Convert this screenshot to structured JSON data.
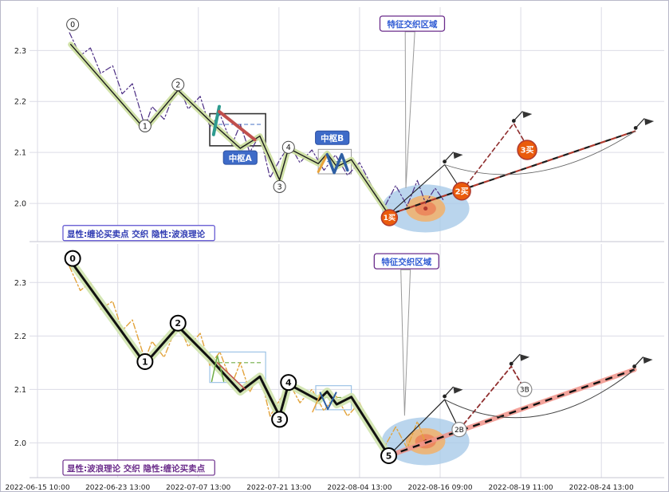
{
  "figure": {
    "background": "#ffffff",
    "border_color": "#b9b9c9",
    "grid_color": "#dcdce6",
    "axis_line_color": "#c5c5d2",
    "tick_text_color": "#1a1a1a"
  },
  "x_axis": {
    "ticks": [
      {
        "label": "2022-06-15 10:00",
        "f": 0.0126
      },
      {
        "label": "2022-06-23 13:00",
        "f": 0.139
      },
      {
        "label": "2022-07-07 13:00",
        "f": 0.266
      },
      {
        "label": "2022-07-21 13:00",
        "f": 0.393
      },
      {
        "label": "2022-08-04 13:00",
        "f": 0.52
      },
      {
        "label": "2022-08-16 09:00",
        "f": 0.647
      },
      {
        "label": "2022-08-19 11:00",
        "f": 0.774
      },
      {
        "label": "2022-08-24 13:00",
        "f": 0.901
      }
    ]
  },
  "chart_data": [
    {
      "type": "line",
      "name": "panel-top-chan-explicit",
      "title": "",
      "xlabel": "",
      "ylabel": "",
      "ylim": [
        1.925,
        2.385
      ],
      "yticks": [
        2.3,
        2.2,
        2.1,
        2.0
      ],
      "legend": {
        "text": "显性:缠论买卖点 交织 隐性:波浪理论",
        "text_color": "#2F3BB3",
        "border_color": "#5A4FCF",
        "f": 0.059,
        "p": 1.941
      },
      "feature_zone": {
        "label": "特征交织区域",
        "label_color": "#2F5BD4",
        "box_border": "#6B2D8B",
        "label_f": 0.603,
        "label_p": 2.352,
        "wedge": [
          [
            0.592,
            2.337
          ],
          [
            0.607,
            2.337
          ],
          [
            0.593,
            2.03
          ]
        ],
        "center_f": 0.624,
        "center_p": 1.99,
        "rx_f": 0.069,
        "ry_p": 0.047,
        "colors": {
          "outer": "#a9cbe8",
          "mid": "#f2b069",
          "inner": "#ec8a5e",
          "dot": "#b03a2e"
        }
      },
      "series": [
        {
          "name": "elliott-hidden-line",
          "color": "#4B2D83",
          "width": 1.2,
          "dash": "7 3 2 3",
          "points": [
            [
              0.063,
              2.335
            ],
            [
              0.08,
              2.29
            ],
            [
              0.096,
              2.305
            ],
            [
              0.112,
              2.255
            ],
            [
              0.131,
              2.27
            ],
            [
              0.146,
              2.215
            ],
            [
              0.162,
              2.235
            ],
            [
              0.182,
              2.15
            ],
            [
              0.193,
              2.19
            ],
            [
              0.212,
              2.165
            ],
            [
              0.234,
              2.235
            ],
            [
              0.25,
              2.185
            ],
            [
              0.269,
              2.21
            ],
            [
              0.284,
              2.15
            ],
            [
              0.3,
              2.175
            ],
            [
              0.319,
              2.115
            ],
            [
              0.332,
              2.155
            ],
            [
              0.347,
              2.1
            ],
            [
              0.363,
              2.135
            ],
            [
              0.379,
              2.05
            ],
            [
              0.394,
              2.085
            ],
            [
              0.41,
              2.115
            ],
            [
              0.426,
              2.08
            ],
            [
              0.445,
              2.105
            ],
            [
              0.464,
              2.065
            ],
            [
              0.482,
              2.095
            ],
            [
              0.501,
              2.055
            ],
            [
              0.52,
              2.08
            ],
            [
              0.539,
              2.035
            ],
            [
              0.558,
              1.99
            ],
            [
              0.577,
              2.035
            ],
            [
              0.595,
              1.995
            ],
            [
              0.611,
              2.045
            ],
            [
              0.624,
              2.0
            ],
            [
              0.639,
              2.03
            ],
            [
              0.653,
              2.005
            ]
          ]
        },
        {
          "name": "chan-main-line",
          "color": "#1b1b1b",
          "width": 1.4,
          "glow_color": "#ccdf9e",
          "glow_width": 7,
          "points": [
            [
              0.065,
              2.312
            ],
            [
              0.182,
              2.145
            ],
            [
              0.234,
              2.222
            ],
            [
              0.284,
              2.162
            ],
            [
              0.332,
              2.108
            ],
            [
              0.363,
              2.132
            ],
            [
              0.394,
              2.046
            ],
            [
              0.408,
              2.108
            ],
            [
              0.455,
              2.078
            ],
            [
              0.469,
              2.098
            ],
            [
              0.484,
              2.072
            ],
            [
              0.507,
              2.086
            ],
            [
              0.566,
              1.978
            ]
          ]
        }
      ],
      "post_low": {
        "thin": {
          "color": "#222222",
          "width": 1.1,
          "points": [
            [
              0.566,
              1.978
            ],
            [
              0.654,
              2.076
            ],
            [
              0.681,
              2.024
            ]
          ]
        },
        "dashed": {
          "color": "#8f2d2d",
          "width": 1.6,
          "dash": "5 4",
          "points": [
            [
              0.681,
              2.024
            ],
            [
              0.763,
              2.157
            ],
            [
              0.784,
              2.112
            ]
          ]
        },
        "trend": {
          "style": "duotone",
          "from": [
            0.566,
            1.978
          ],
          "to": [
            0.955,
            2.142
          ],
          "color_a": "#b03a2e",
          "color_b": "#1b1b1b",
          "width": 2.2
        },
        "arc": {
          "from": [
            0.654,
            2.076
          ],
          "ctrl": [
            0.8,
            2.016
          ],
          "to": [
            0.955,
            2.142
          ],
          "color": "#666666",
          "width": 0.9
        }
      },
      "pivot_boxes": [
        {
          "f1": 0.284,
          "p1": 2.176,
          "f2": 0.372,
          "p2": 2.113,
          "border": "#333333",
          "width": 1.6,
          "inner_dash": {
            "p": 2.155,
            "color": "#4472C4"
          }
        },
        {
          "f1": 0.455,
          "p1": 2.106,
          "f2": 0.507,
          "p2": 2.058,
          "border": "#999999",
          "width": 1,
          "inner_dash": {
            "p": 2.082,
            "color": "#4472C4"
          }
        }
      ],
      "pivot_labels": [
        {
          "text": "中枢A",
          "f": 0.332,
          "p": 2.089,
          "bg": "#3E6BC8",
          "text_color": "#ffffff"
        },
        {
          "text": "中枢B",
          "f": 0.477,
          "p": 2.128,
          "bg": "#3E6BC8",
          "text_color": "#ffffff"
        }
      ],
      "strokes": [
        {
          "points": [
            [
              0.29,
              2.135
            ],
            [
              0.299,
              2.19
            ]
          ],
          "color": "#2E9B8F",
          "width": 4
        },
        {
          "points": [
            [
              0.299,
              2.18
            ],
            [
              0.355,
              2.125
            ]
          ],
          "color": "#C0504D",
          "width": 4
        },
        {
          "points": [
            [
              0.455,
              2.062
            ],
            [
              0.469,
              2.096
            ]
          ],
          "color": "#E8A33B",
          "width": 3
        },
        {
          "points": [
            [
              0.469,
              2.096
            ],
            [
              0.48,
              2.06
            ],
            [
              0.492,
              2.096
            ],
            [
              0.501,
              2.065
            ]
          ],
          "color": "#2E5FA3",
          "width": 3.5
        }
      ],
      "flags": [
        [
          0.654,
          2.082
        ],
        [
          0.763,
          2.162
        ],
        [
          0.955,
          2.148
        ]
      ],
      "markers": [
        {
          "text": "0",
          "f": 0.068,
          "p": 2.351,
          "style": "num"
        },
        {
          "text": "1",
          "f": 0.182,
          "p": 2.152,
          "style": "num"
        },
        {
          "text": "2",
          "f": 0.234,
          "p": 2.233,
          "style": "num"
        },
        {
          "text": "3",
          "f": 0.394,
          "p": 2.033,
          "style": "num"
        },
        {
          "text": "4",
          "f": 0.408,
          "p": 2.11,
          "style": "num"
        },
        {
          "text": "1买",
          "f": 0.567,
          "p": 1.972,
          "style": "buy",
          "r": 10
        },
        {
          "text": "2买",
          "f": 0.681,
          "p": 2.024,
          "style": "buy",
          "r": 11
        },
        {
          "text": "3买",
          "f": 0.784,
          "p": 2.105,
          "style": "buy",
          "r": 12
        }
      ]
    },
    {
      "type": "line",
      "name": "panel-bottom-wave-explicit",
      "title": "",
      "xlabel": "",
      "ylabel": "",
      "ylim": [
        1.935,
        2.372
      ],
      "yticks": [
        2.3,
        2.2,
        2.1,
        2.0
      ],
      "legend": {
        "text": "显性:波浪理论 交织 隐性:缠论买卖点",
        "text_color": "#6B2D8B",
        "border_color": "#6B2D8B",
        "f": 0.059,
        "p": 1.953
      },
      "feature_zone": {
        "label": "特征交织区域",
        "label_color": "#2F5BD4",
        "box_border": "#6B2D8B",
        "label_f": 0.594,
        "label_p": 2.339,
        "wedge": [
          [
            0.585,
            2.324
          ],
          [
            0.6,
            2.324
          ],
          [
            0.591,
            2.051
          ]
        ],
        "center_f": 0.624,
        "center_p": 2.003,
        "rx_f": 0.069,
        "ry_p": 0.0448,
        "colors": {
          "outer": "#a9cbe8",
          "mid": "#f2b069",
          "inner": "#ec8a5e",
          "dot": "#b03a2e"
        }
      },
      "series": [
        {
          "name": "chan-hidden-line",
          "color": "#E2A33B",
          "width": 1.4,
          "dash": "7 3 2 3",
          "points": [
            [
              0.063,
              2.33
            ],
            [
              0.08,
              2.285
            ],
            [
              0.096,
              2.3
            ],
            [
              0.112,
              2.25
            ],
            [
              0.131,
              2.265
            ],
            [
              0.146,
              2.21
            ],
            [
              0.162,
              2.23
            ],
            [
              0.182,
              2.155
            ],
            [
              0.193,
              2.19
            ],
            [
              0.212,
              2.16
            ],
            [
              0.234,
              2.225
            ],
            [
              0.25,
              2.18
            ],
            [
              0.269,
              2.205
            ],
            [
              0.284,
              2.145
            ],
            [
              0.3,
              2.17
            ],
            [
              0.319,
              2.11
            ],
            [
              0.332,
              2.15
            ],
            [
              0.347,
              2.095
            ],
            [
              0.363,
              2.13
            ],
            [
              0.379,
              2.05
            ],
            [
              0.394,
              2.08
            ],
            [
              0.41,
              2.11
            ],
            [
              0.426,
              2.075
            ],
            [
              0.445,
              2.1
            ],
            [
              0.464,
              2.06
            ],
            [
              0.482,
              2.09
            ],
            [
              0.501,
              2.05
            ],
            [
              0.52,
              2.075
            ],
            [
              0.539,
              2.03
            ],
            [
              0.558,
              1.99
            ],
            [
              0.577,
              2.03
            ],
            [
              0.595,
              1.99
            ],
            [
              0.611,
              2.04
            ],
            [
              0.624,
              2.0
            ]
          ]
        },
        {
          "name": "wave-main-line",
          "color": "#111111",
          "width": 3,
          "glow_color": "#cfe3ad",
          "glow_width": 10,
          "points": [
            [
              0.065,
              2.34
            ],
            [
              0.182,
              2.148
            ],
            [
              0.234,
              2.218
            ],
            [
              0.284,
              2.158
            ],
            [
              0.332,
              2.096
            ],
            [
              0.363,
              2.124
            ],
            [
              0.394,
              2.05
            ],
            [
              0.408,
              2.11
            ],
            [
              0.455,
              2.08
            ],
            [
              0.469,
              2.096
            ],
            [
              0.484,
              2.072
            ],
            [
              0.507,
              2.086
            ],
            [
              0.566,
              1.976
            ]
          ]
        }
      ],
      "post_low": {
        "thin": {
          "color": "#222222",
          "width": 1.2,
          "points": [
            [
              0.566,
              1.976
            ],
            [
              0.654,
              2.081
            ],
            [
              0.677,
              2.025
            ]
          ]
        },
        "dashed": {
          "color": "#8f2d2d",
          "width": 1.8,
          "dash": "5 4",
          "points": [
            [
              0.677,
              2.025
            ],
            [
              0.759,
              2.143
            ],
            [
              0.78,
              2.1
            ]
          ]
        },
        "trend": {
          "style": "pink",
          "from": [
            0.566,
            1.976
          ],
          "to": [
            0.953,
            2.137
          ],
          "color_a": "#F1948A",
          "color_b": "#111111",
          "width": 6
        },
        "arc": {
          "from": [
            0.654,
            2.081
          ],
          "ctrl": [
            0.8,
            1.992
          ],
          "to": [
            0.953,
            2.137
          ],
          "color": "#444444",
          "width": 1
        }
      },
      "pivot_boxes": [
        {
          "f1": 0.284,
          "p1": 2.17,
          "f2": 0.372,
          "p2": 2.113,
          "border": "#9DC3E6",
          "width": 1.2,
          "inner_dash": {
            "p": 2.15,
            "color": "#70AD47"
          }
        },
        {
          "f1": 0.451,
          "p1": 2.107,
          "f2": 0.507,
          "p2": 2.062,
          "border": "#9DC3E6",
          "width": 1.2,
          "inner_dash": {
            "p": 2.085,
            "color": "#70AD47"
          }
        }
      ],
      "pivot_labels": [],
      "strokes": [
        {
          "points": [
            [
              0.287,
              2.115
            ],
            [
              0.296,
              2.163
            ],
            [
              0.306,
              2.115
            ]
          ],
          "color": "#70AD47",
          "width": 1.5
        },
        {
          "points": [
            [
              0.296,
              2.15
            ],
            [
              0.34,
              2.1
            ]
          ],
          "color": "#C0504D",
          "width": 1.5
        },
        {
          "points": [
            [
              0.446,
              2.058
            ],
            [
              0.458,
              2.09
            ]
          ],
          "color": "#E8A33B",
          "width": 1.5
        },
        {
          "points": [
            [
              0.458,
              2.094
            ],
            [
              0.47,
              2.063
            ],
            [
              0.483,
              2.094
            ]
          ],
          "color": "#2E5FA3",
          "width": 2
        }
      ],
      "flags": [
        [
          0.654,
          2.087
        ],
        [
          0.759,
          2.148
        ],
        [
          0.953,
          2.143
        ]
      ],
      "markers": [
        {
          "text": "0",
          "f": 0.068,
          "p": 2.345,
          "style": "num-bold"
        },
        {
          "text": "1",
          "f": 0.182,
          "p": 2.152,
          "style": "num-bold"
        },
        {
          "text": "2",
          "f": 0.234,
          "p": 2.224,
          "style": "num-bold"
        },
        {
          "text": "3",
          "f": 0.394,
          "p": 2.044,
          "style": "num-bold"
        },
        {
          "text": "4",
          "f": 0.408,
          "p": 2.113,
          "style": "num-bold"
        },
        {
          "text": "5",
          "f": 0.566,
          "p": 1.976,
          "style": "num-bold"
        },
        {
          "text": "2B",
          "f": 0.677,
          "p": 2.025,
          "style": "label"
        },
        {
          "text": "3B",
          "f": 0.78,
          "p": 2.1,
          "style": "label"
        }
      ]
    }
  ]
}
